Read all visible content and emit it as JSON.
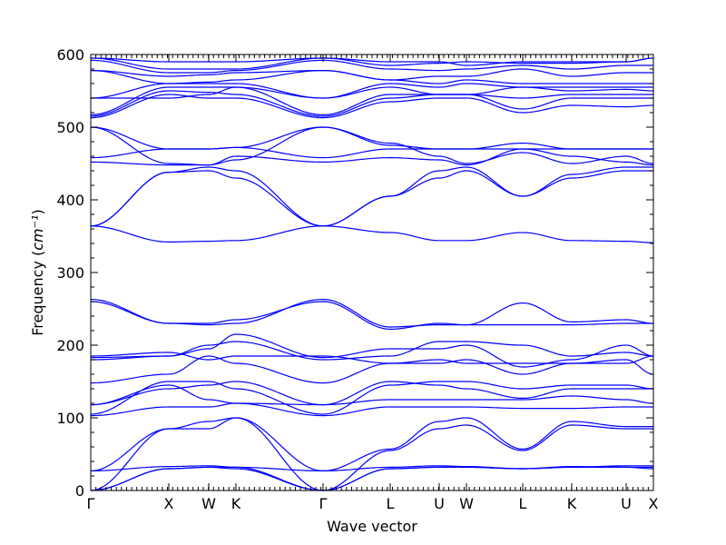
{
  "chart_data": {
    "type": "line",
    "title": "",
    "xlabel": "Wave vector",
    "ylabel": "Frequency",
    "ylabel_unit": "cm⁻¹",
    "ylim": [
      0,
      600
    ],
    "yticks": [
      0,
      100,
      200,
      300,
      400,
      500,
      600
    ],
    "grid": false,
    "line_color": "#0000ff",
    "xlim": [
      0,
      6.2
    ],
    "high_symmetry_points": [
      {
        "label": "Γ",
        "x": 0
      },
      {
        "label": "X",
        "x": 0.86
      },
      {
        "label": "W",
        "x": 1.3
      },
      {
        "label": "K",
        "x": 1.6
      },
      {
        "label": "Γ",
        "x": 2.56
      },
      {
        "label": "L",
        "x": 3.3
      },
      {
        "label": "U",
        "x": 3.84
      },
      {
        "label": "W",
        "x": 4.14
      },
      {
        "label": "L",
        "x": 4.76
      },
      {
        "label": "K",
        "x": 5.3
      },
      {
        "label": "U",
        "x": 5.9
      },
      {
        "label": "X",
        "x": 6.2
      }
    ],
    "series": [
      {
        "values": [
          0,
          30,
          32,
          30,
          0,
          30,
          32,
          32,
          30,
          32,
          32,
          32
        ]
      },
      {
        "values": [
          0,
          30,
          32,
          32,
          0,
          30,
          32,
          32,
          30,
          32,
          34,
          34
        ]
      },
      {
        "values": [
          0,
          85,
          85,
          100,
          0,
          55,
          85,
          90,
          55,
          90,
          85,
          85
        ]
      },
      {
        "values": [
          27,
          85,
          95,
          100,
          27,
          57,
          95,
          100,
          57,
          95,
          88,
          88
        ]
      },
      {
        "values": [
          27,
          33,
          34,
          32,
          27,
          32,
          34,
          33,
          30,
          33,
          32,
          30
        ]
      },
      {
        "values": [
          103,
          115,
          115,
          120,
          103,
          115,
          115,
          115,
          113,
          113,
          115,
          115
        ]
      },
      {
        "values": [
          105,
          150,
          150,
          140,
          105,
          145,
          150,
          150,
          140,
          145,
          145,
          140
        ]
      },
      {
        "values": [
          118,
          140,
          145,
          150,
          118,
          150,
          145,
          140,
          127,
          140,
          140,
          140
        ]
      },
      {
        "values": [
          118,
          145,
          125,
          120,
          118,
          125,
          125,
          125,
          125,
          130,
          125,
          120
        ]
      },
      {
        "values": [
          148,
          160,
          185,
          175,
          148,
          175,
          175,
          180,
          160,
          175,
          180,
          160
        ]
      },
      {
        "values": [
          180,
          185,
          200,
          205,
          180,
          185,
          205,
          205,
          200,
          185,
          190,
          185
        ]
      },
      {
        "values": [
          183,
          185,
          195,
          215,
          183,
          195,
          195,
          200,
          170,
          180,
          200,
          185
        ]
      },
      {
        "values": [
          185,
          190,
          180,
          185,
          185,
          175,
          180,
          175,
          175,
          175,
          175,
          185
        ]
      },
      {
        "values": [
          260,
          230,
          230,
          235,
          260,
          222,
          230,
          228,
          258,
          232,
          235,
          230
        ]
      },
      {
        "values": [
          263,
          230,
          228,
          230,
          263,
          225,
          228,
          228,
          228,
          228,
          230,
          230
        ]
      },
      {
        "values": [
          364,
          438,
          440,
          430,
          364,
          405,
          430,
          440,
          405,
          430,
          440,
          440
        ]
      },
      {
        "values": [
          364,
          438,
          445,
          440,
          364,
          405,
          440,
          445,
          405,
          435,
          445,
          445
        ]
      },
      {
        "values": [
          364,
          342,
          343,
          344,
          364,
          355,
          344,
          344,
          355,
          344,
          343,
          341
        ]
      },
      {
        "values": [
          452,
          448,
          448,
          460,
          452,
          458,
          455,
          448,
          470,
          460,
          452,
          448
        ]
      },
      {
        "values": [
          458,
          470,
          470,
          472,
          458,
          470,
          470,
          470,
          470,
          470,
          470,
          470
        ]
      },
      {
        "values": [
          500,
          470,
          470,
          472,
          500,
          475,
          470,
          470,
          478,
          470,
          470,
          470
        ]
      },
      {
        "values": [
          500,
          450,
          448,
          455,
          500,
          478,
          460,
          450,
          465,
          450,
          460,
          450
        ]
      },
      {
        "values": [
          513,
          545,
          540,
          540,
          513,
          535,
          540,
          540,
          520,
          530,
          528,
          530
        ]
      },
      {
        "values": [
          515,
          550,
          548,
          545,
          515,
          540,
          545,
          545,
          525,
          540,
          540,
          540
        ]
      },
      {
        "values": [
          517,
          555,
          555,
          555,
          517,
          545,
          545,
          545,
          540,
          545,
          545,
          545
        ]
      },
      {
        "values": [
          540,
          540,
          545,
          555,
          540,
          555,
          545,
          545,
          555,
          550,
          552,
          550
        ]
      },
      {
        "values": [
          540,
          560,
          560,
          560,
          540,
          560,
          555,
          560,
          555,
          555,
          555,
          555
        ]
      },
      {
        "values": [
          578,
          560,
          562,
          565,
          578,
          565,
          560,
          565,
          560,
          560,
          560,
          560
        ]
      },
      {
        "values": [
          578,
          570,
          572,
          575,
          578,
          565,
          570,
          570,
          580,
          570,
          575,
          575
        ]
      },
      {
        "values": [
          592,
          575,
          575,
          578,
          592,
          580,
          578,
          580,
          585,
          580,
          585,
          585
        ]
      },
      {
        "values": [
          595,
          580,
          580,
          580,
          595,
          585,
          588,
          590,
          588,
          588,
          590,
          595
        ]
      },
      {
        "values": [
          595,
          590,
          590,
          590,
          595,
          590,
          590,
          585,
          590,
          590,
          590,
          595
        ]
      }
    ]
  }
}
